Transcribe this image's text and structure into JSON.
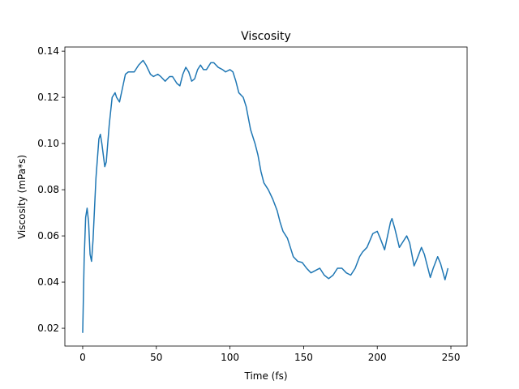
{
  "chart_data": {
    "type": "line",
    "title": "Viscosity",
    "x_label": "Time (fs)",
    "y_label": "Viscosity (mPa*s)",
    "color": "#1f77b4",
    "x": [
      0,
      1,
      2,
      3,
      4,
      5,
      6,
      7,
      9,
      11,
      12,
      13,
      15,
      16,
      18,
      20,
      22,
      23,
      25,
      27,
      29,
      31,
      35,
      38,
      41,
      43,
      46,
      48,
      51,
      53,
      56,
      59,
      61,
      64,
      66,
      68,
      70,
      72,
      74,
      76,
      78,
      80,
      82,
      84,
      87,
      89,
      92,
      95,
      97,
      100,
      102,
      104,
      106,
      109,
      111,
      114,
      117,
      119,
      121,
      123,
      126,
      129,
      132,
      134,
      136,
      139,
      141,
      143,
      146,
      149,
      152,
      155,
      158,
      161,
      164,
      167,
      170,
      173,
      176,
      179,
      182,
      185,
      188,
      190,
      193,
      195,
      197,
      200,
      202,
      205,
      207,
      209,
      210,
      212,
      215,
      217,
      220,
      222,
      225,
      227,
      230,
      232,
      236,
      238,
      241,
      243,
      246,
      248
    ],
    "values": [
      0.018,
      0.05,
      0.068,
      0.072,
      0.066,
      0.052,
      0.049,
      0.058,
      0.085,
      0.102,
      0.104,
      0.1,
      0.09,
      0.092,
      0.108,
      0.12,
      0.122,
      0.12,
      0.118,
      0.124,
      0.13,
      0.131,
      0.131,
      0.134,
      0.136,
      0.134,
      0.13,
      0.129,
      0.13,
      0.129,
      0.127,
      0.129,
      0.129,
      0.126,
      0.125,
      0.13,
      0.133,
      0.131,
      0.127,
      0.128,
      0.132,
      0.134,
      0.132,
      0.132,
      0.135,
      0.135,
      0.133,
      0.132,
      0.131,
      0.132,
      0.131,
      0.127,
      0.122,
      0.12,
      0.116,
      0.106,
      0.1,
      0.095,
      0.088,
      0.083,
      0.08,
      0.076,
      0.071,
      0.066,
      0.062,
      0.059,
      0.055,
      0.051,
      0.049,
      0.0485,
      0.046,
      0.044,
      0.045,
      0.046,
      0.043,
      0.0415,
      0.043,
      0.046,
      0.046,
      0.044,
      0.043,
      0.046,
      0.051,
      0.053,
      0.055,
      0.058,
      0.061,
      0.062,
      0.059,
      0.054,
      0.06,
      0.066,
      0.0675,
      0.063,
      0.055,
      0.057,
      0.06,
      0.057,
      0.047,
      0.05,
      0.055,
      0.052,
      0.042,
      0.046,
      0.051,
      0.048,
      0.041,
      0.046
    ],
    "xlim": [
      -12.1,
      261
    ],
    "ylim": [
      0.0123,
      0.1418
    ],
    "xticks": [
      0,
      50,
      100,
      150,
      200,
      250
    ],
    "yticks": [
      0.02,
      0.04,
      0.06,
      0.08,
      {
        "value": 0.1,
        "label": "0.10"
      },
      0.12,
      0.14
    ]
  }
}
